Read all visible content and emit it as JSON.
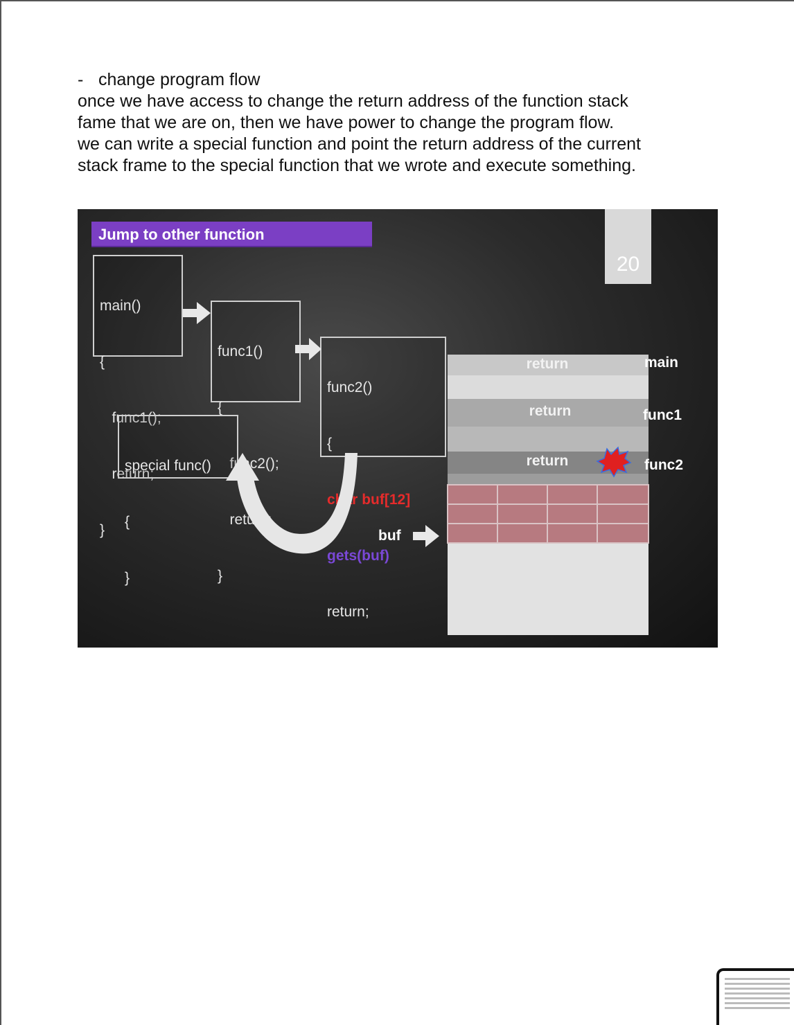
{
  "document": {
    "bullet_dash": "-",
    "heading": "change program flow",
    "paragraph_lines": [
      "once we have access to change the return address of the function stack",
      "fame that we are on, then we have power to change the program flow.",
      "we can write a special function and point the return address of the current",
      "stack frame to the special function that we wrote and execute something."
    ]
  },
  "slide": {
    "title": "Jump to other function",
    "slide_number": "20",
    "main_box": [
      "main()",
      "{",
      "   func1();",
      "   return;",
      "}"
    ],
    "func1_box": [
      "func1()",
      "{",
      "   func2();",
      "   return;",
      "}"
    ],
    "func2_box": {
      "line1": "func2()",
      "line2": "{",
      "line3": "char buf[12]",
      "line4": "gets(buf)",
      "line5": "return;",
      "line6": "}"
    },
    "special_box": [
      "special func()",
      "{",
      "}"
    ],
    "stack": {
      "return_labels": [
        "return",
        "return",
        "return"
      ],
      "frame_labels": [
        "main",
        "func1",
        "func2"
      ],
      "buf_label": "buf"
    },
    "colors": {
      "title_bar": "#7b3fc4",
      "buffer_cells": "#b77a80",
      "red_code": "#e52b2b",
      "purple_code": "#7a48d6",
      "explosion": "#e02020"
    }
  }
}
